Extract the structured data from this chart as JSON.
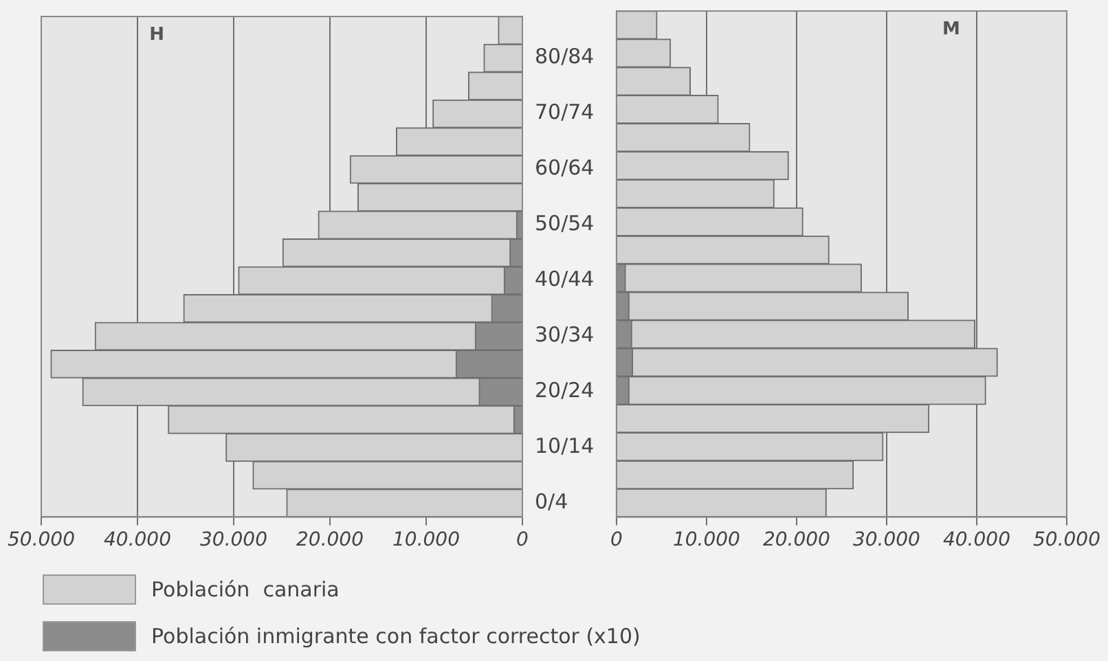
{
  "chart_data": [
    {
      "type": "bar",
      "orientation": "horizontal",
      "title": "H",
      "grid": "x",
      "legend": "bottom",
      "categories": [
        null,
        "80/84",
        null,
        "70/74",
        null,
        "60/64",
        null,
        "50/54",
        null,
        "40/44",
        null,
        "30/34",
        null,
        "20/24",
        null,
        "10/14",
        null,
        "0/4"
      ],
      "xlim": [
        50000,
        0
      ],
      "xticks": [
        {
          "value": 50000,
          "label": "50.000"
        },
        {
          "value": 40000,
          "label": "40.000"
        },
        {
          "value": 30000,
          "label": "30.000"
        },
        {
          "value": 20000,
          "label": "20.000"
        },
        {
          "value": 10000,
          "label": "10.000"
        },
        0
      ],
      "series": [
        {
          "name": "Población  canaria",
          "color": "#d2d2d2",
          "values": [
            2500,
            4000,
            5600,
            9300,
            13100,
            17900,
            17100,
            21200,
            24900,
            29500,
            35200,
            44400,
            49000,
            45700,
            36800,
            30800,
            28000,
            24500
          ]
        },
        {
          "name": "Población inmigrante con factor corrector (x10)",
          "color": "#8c8c8c",
          "values": [
            null,
            null,
            null,
            null,
            null,
            null,
            null,
            600,
            1300,
            1900,
            3200,
            4900,
            6900,
            4500,
            900,
            null,
            null,
            null
          ]
        }
      ]
    },
    {
      "type": "bar",
      "orientation": "horizontal",
      "title": "M",
      "grid": "x",
      "tick_labels": "x",
      "categories": [
        null,
        null,
        null,
        null,
        null,
        null,
        null,
        null,
        null,
        null,
        null,
        null,
        null,
        null,
        null,
        null,
        null,
        null
      ],
      "xlim": [
        0,
        50000
      ],
      "xticks": [
        0,
        {
          "value": 10000,
          "label": "10.000"
        },
        {
          "value": 20000,
          "label": "20.000"
        },
        {
          "value": 30000,
          "label": "30.000"
        },
        {
          "value": 40000,
          "label": "40.000"
        },
        {
          "value": 50000,
          "label": "50.000"
        }
      ],
      "series": [
        {
          "color": "#d2d2d2",
          "values": [
            4500,
            6000,
            8200,
            11300,
            14800,
            19100,
            17500,
            20700,
            23600,
            27200,
            32400,
            39800,
            42300,
            41000,
            34700,
            29600,
            26300,
            23300
          ]
        },
        {
          "color": "#8c8c8c",
          "values": [
            null,
            null,
            null,
            null,
            null,
            null,
            null,
            null,
            null,
            1000,
            1400,
            1700,
            1800,
            1400,
            null,
            null,
            null,
            null
          ]
        }
      ]
    }
  ]
}
